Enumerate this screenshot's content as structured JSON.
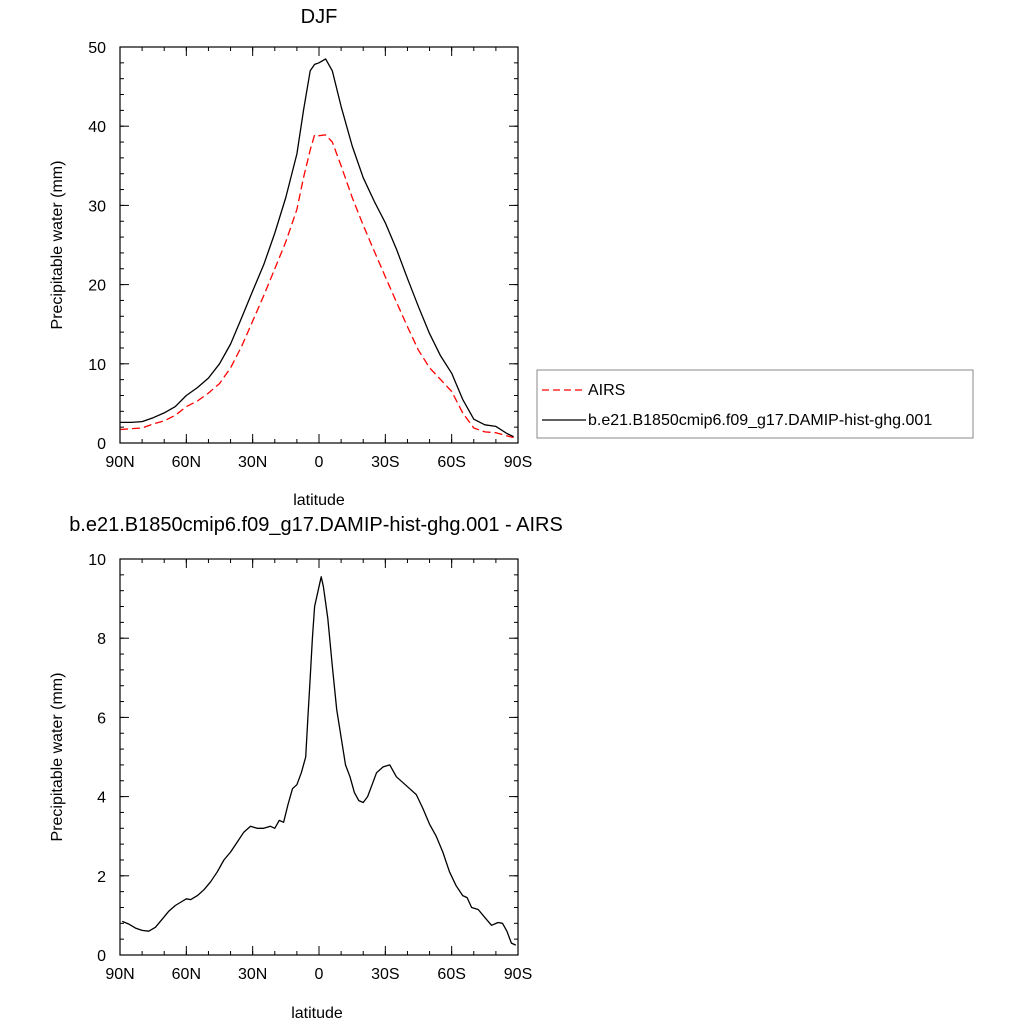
{
  "chart_data": [
    {
      "type": "line",
      "title": "DJF",
      "xlabel": "latitude",
      "ylabel": "Precipitable water (mm)",
      "x_ticks": [
        {
          "lat": 90,
          "label": "90N"
        },
        {
          "lat": 60,
          "label": "60N"
        },
        {
          "lat": 30,
          "label": "30N"
        },
        {
          "lat": 0,
          "label": "0"
        },
        {
          "lat": -30,
          "label": "30S"
        },
        {
          "lat": -60,
          "label": "60S"
        },
        {
          "lat": -90,
          "label": "90S"
        }
      ],
      "xlim": [
        90,
        -90
      ],
      "ylim": [
        0,
        50
      ],
      "y_ticks": [
        0,
        10,
        20,
        30,
        40,
        50
      ],
      "legend": {
        "placement": "outside-right"
      },
      "series": [
        {
          "name": "AIRS",
          "color": "#ff0000",
          "dash": "dashed",
          "points": [
            [
              90,
              1.7
            ],
            [
              85,
              1.8
            ],
            [
              80,
              1.9
            ],
            [
              75,
              2.4
            ],
            [
              70,
              2.8
            ],
            [
              65,
              3.5
            ],
            [
              60,
              4.6
            ],
            [
              55,
              5.3
            ],
            [
              50,
              6.3
            ],
            [
              45,
              7.5
            ],
            [
              40,
              9.5
            ],
            [
              35,
              12.2
            ],
            [
              30,
              15.4
            ],
            [
              25,
              18.6
            ],
            [
              20,
              22
            ],
            [
              15,
              25.4
            ],
            [
              10,
              29.5
            ],
            [
              7,
              33.5
            ],
            [
              4,
              37
            ],
            [
              2,
              38.9
            ],
            [
              0,
              38.8
            ],
            [
              -3,
              38.9
            ],
            [
              -6,
              38
            ],
            [
              -10,
              35
            ],
            [
              -15,
              31
            ],
            [
              -20,
              27.5
            ],
            [
              -25,
              24.2
            ],
            [
              -30,
              21
            ],
            [
              -35,
              17.8
            ],
            [
              -40,
              14.7
            ],
            [
              -45,
              11.7
            ],
            [
              -50,
              9.5
            ],
            [
              -55,
              8
            ],
            [
              -60,
              6.5
            ],
            [
              -65,
              3.8
            ],
            [
              -70,
              1.9
            ],
            [
              -75,
              1.4
            ],
            [
              -80,
              1.3
            ],
            [
              -85,
              0.9
            ],
            [
              -88,
              0.7
            ]
          ]
        },
        {
          "name": "b.e21.B1850cmip6.f09_g17.DAMIP-hist-ghg.001",
          "color": "#000000",
          "dash": "solid",
          "points": [
            [
              90,
              2.6
            ],
            [
              85,
              2.6
            ],
            [
              80,
              2.7
            ],
            [
              75,
              3.2
            ],
            [
              70,
              3.8
            ],
            [
              65,
              4.6
            ],
            [
              60,
              6
            ],
            [
              55,
              7
            ],
            [
              50,
              8.2
            ],
            [
              45,
              10
            ],
            [
              40,
              12.5
            ],
            [
              35,
              15.8
            ],
            [
              30,
              19.2
            ],
            [
              25,
              22.5
            ],
            [
              20,
              26.5
            ],
            [
              15,
              31
            ],
            [
              10,
              36.5
            ],
            [
              7,
              42
            ],
            [
              4,
              47
            ],
            [
              2,
              47.8
            ],
            [
              0,
              48
            ],
            [
              -3,
              48.5
            ],
            [
              -6,
              47
            ],
            [
              -10,
              42.5
            ],
            [
              -15,
              37.5
            ],
            [
              -20,
              33.5
            ],
            [
              -25,
              30.5
            ],
            [
              -30,
              27.8
            ],
            [
              -35,
              24.5
            ],
            [
              -40,
              20.8
            ],
            [
              -45,
              17.2
            ],
            [
              -50,
              13.8
            ],
            [
              -55,
              11
            ],
            [
              -60,
              8.8
            ],
            [
              -65,
              5.5
            ],
            [
              -70,
              3
            ],
            [
              -75,
              2.3
            ],
            [
              -80,
              2.1
            ],
            [
              -85,
              1.2
            ],
            [
              -88,
              0.8
            ]
          ]
        }
      ]
    },
    {
      "type": "line",
      "title": "b.e21.B1850cmip6.f09_g17.DAMIP-hist-ghg.001 - AIRS",
      "xlabel": "latitude",
      "ylabel": "Precipitable water (mm)",
      "x_ticks": [
        {
          "lat": 90,
          "label": "90N"
        },
        {
          "lat": 60,
          "label": "60N"
        },
        {
          "lat": 30,
          "label": "30N"
        },
        {
          "lat": 0,
          "label": "0"
        },
        {
          "lat": -30,
          "label": "30S"
        },
        {
          "lat": -60,
          "label": "60S"
        },
        {
          "lat": -90,
          "label": "90S"
        }
      ],
      "xlim": [
        90,
        -90
      ],
      "ylim": [
        0,
        10
      ],
      "y_ticks": [
        0,
        2,
        4,
        6,
        8,
        10
      ],
      "series": [
        {
          "color": "#000000",
          "dash": "solid",
          "points": [
            [
              89,
              0.85
            ],
            [
              86,
              0.78
            ],
            [
              83,
              0.68
            ],
            [
              80,
              0.62
            ],
            [
              77,
              0.6
            ],
            [
              74,
              0.7
            ],
            [
              71,
              0.9
            ],
            [
              68,
              1.1
            ],
            [
              65,
              1.25
            ],
            [
              62,
              1.35
            ],
            [
              60,
              1.42
            ],
            [
              58,
              1.4
            ],
            [
              55,
              1.5
            ],
            [
              52,
              1.65
            ],
            [
              49,
              1.85
            ],
            [
              46,
              2.1
            ],
            [
              43,
              2.4
            ],
            [
              40,
              2.6
            ],
            [
              37,
              2.85
            ],
            [
              34,
              3.1
            ],
            [
              31,
              3.25
            ],
            [
              28,
              3.2
            ],
            [
              25,
              3.2
            ],
            [
              22,
              3.25
            ],
            [
              20,
              3.2
            ],
            [
              18,
              3.4
            ],
            [
              16,
              3.35
            ],
            [
              14,
              3.8
            ],
            [
              12,
              4.2
            ],
            [
              10,
              4.3
            ],
            [
              8,
              4.6
            ],
            [
              6,
              5
            ],
            [
              5,
              6
            ],
            [
              4,
              7
            ],
            [
              3,
              8
            ],
            [
              2,
              8.8
            ],
            [
              0,
              9.3
            ],
            [
              -1,
              9.55
            ],
            [
              -2,
              9.3
            ],
            [
              -4,
              8.5
            ],
            [
              -6,
              7.3
            ],
            [
              -8,
              6.2
            ],
            [
              -10,
              5.5
            ],
            [
              -12,
              4.8
            ],
            [
              -14,
              4.5
            ],
            [
              -16,
              4.1
            ],
            [
              -18,
              3.9
            ],
            [
              -20,
              3.85
            ],
            [
              -22,
              4.0
            ],
            [
              -24,
              4.3
            ],
            [
              -26,
              4.6
            ],
            [
              -29,
              4.75
            ],
            [
              -32,
              4.8
            ],
            [
              -35,
              4.5
            ],
            [
              -38,
              4.35
            ],
            [
              -41,
              4.2
            ],
            [
              -44,
              4.05
            ],
            [
              -47,
              3.7
            ],
            [
              -50,
              3.3
            ],
            [
              -53,
              3.0
            ],
            [
              -56,
              2.6
            ],
            [
              -59,
              2.1
            ],
            [
              -62,
              1.75
            ],
            [
              -65,
              1.5
            ],
            [
              -67,
              1.45
            ],
            [
              -69,
              1.2
            ],
            [
              -72,
              1.15
            ],
            [
              -75,
              0.95
            ],
            [
              -78,
              0.75
            ],
            [
              -81,
              0.82
            ],
            [
              -83,
              0.8
            ],
            [
              -85,
              0.6
            ],
            [
              -87,
              0.3
            ],
            [
              -89,
              0.25
            ]
          ]
        }
      ]
    }
  ]
}
